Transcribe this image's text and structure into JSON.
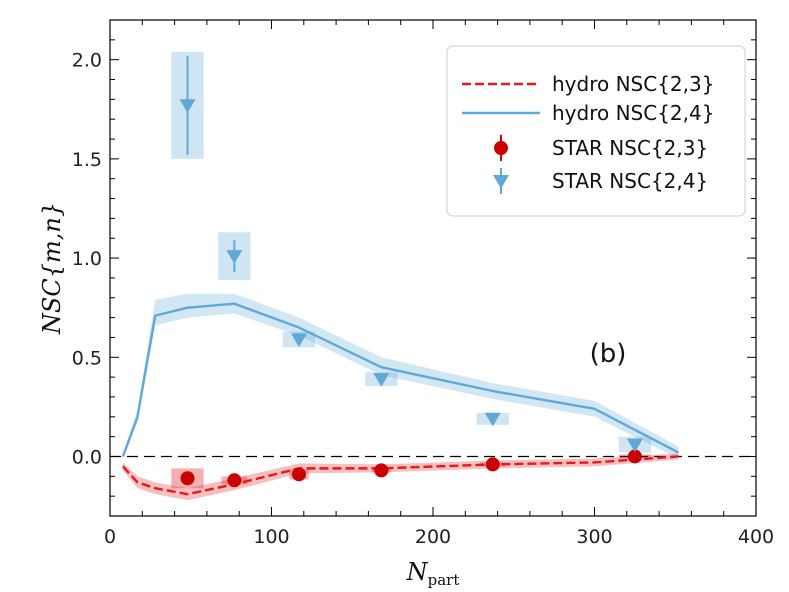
{
  "chart_data": {
    "type": "line",
    "xlabel": "N",
    "xlabel_sub": "part",
    "ylabel": "NSC{m,n}",
    "panel_label": "(b)",
    "xlim": [
      0,
      400
    ],
    "ylim": [
      -0.3,
      2.2
    ],
    "x_ticks": [
      0,
      100,
      200,
      300,
      400
    ],
    "y_ticks": [
      0.0,
      0.5,
      1.0,
      1.5,
      2.0
    ],
    "x_tick_labels": [
      "0",
      "100",
      "200",
      "300",
      "400"
    ],
    "y_tick_labels": [
      "0.0",
      "0.5",
      "1.0",
      "1.5",
      "2.0"
    ],
    "zero_line": true,
    "grid": false,
    "legend_position": "top-right",
    "colors": {
      "red": "#e41a1c",
      "red_marker": "#cc0000",
      "blue": "#5fa8d8"
    },
    "series": [
      {
        "name": "hydro NSC{2,3}",
        "kind": "line",
        "style": "dashed",
        "color_key": "red",
        "x": [
          8,
          17,
          28,
          48,
          77,
          117,
          168,
          237,
          300,
          352
        ],
        "y": [
          -0.05,
          -0.13,
          -0.16,
          -0.19,
          -0.14,
          -0.06,
          -0.06,
          -0.04,
          -0.03,
          0.0
        ],
        "band_low": [
          -0.07,
          -0.16,
          -0.19,
          -0.22,
          -0.17,
          -0.085,
          -0.08,
          -0.06,
          -0.05,
          -0.015
        ],
        "band_high": [
          -0.03,
          -0.1,
          -0.13,
          -0.16,
          -0.11,
          -0.035,
          -0.04,
          -0.02,
          -0.01,
          0.015
        ]
      },
      {
        "name": "hydro NSC{2,4}",
        "kind": "line",
        "style": "solid",
        "color_key": "blue",
        "x": [
          8,
          17,
          28,
          48,
          77,
          117,
          168,
          237,
          300,
          352
        ],
        "y": [
          0.0,
          0.2,
          0.71,
          0.75,
          0.77,
          0.65,
          0.45,
          0.33,
          0.24,
          0.02
        ],
        "band_low": [
          -0.01,
          0.17,
          0.66,
          0.7,
          0.72,
          0.61,
          0.41,
          0.29,
          0.2,
          -0.01
        ],
        "band_high": [
          0.01,
          0.23,
          0.79,
          0.82,
          0.82,
          0.7,
          0.5,
          0.37,
          0.28,
          0.05
        ]
      },
      {
        "name": "STAR NSC{2,3}",
        "kind": "points",
        "marker": "circle",
        "color_key": "red_marker",
        "x": [
          48,
          77,
          117,
          168,
          237,
          325
        ],
        "y": [
          -0.11,
          -0.12,
          -0.09,
          -0.07,
          -0.04,
          0.0
        ],
        "err": [
          0.02,
          0.02,
          0.02,
          0.02,
          0.02,
          0.02
        ],
        "sys_halfwidth_x": [
          10,
          8,
          6,
          6,
          8,
          10
        ],
        "sys_halfheight_y": [
          0.05,
          0.02,
          0.025,
          0.01,
          0.01,
          0.01
        ]
      },
      {
        "name": "STAR NSC{2,4}",
        "kind": "points",
        "marker": "triangle-down",
        "color_key": "blue",
        "x": [
          48,
          77,
          117,
          168,
          237,
          325
        ],
        "y": [
          1.77,
          1.01,
          0.59,
          0.39,
          0.19,
          0.06
        ],
        "err": [
          0.25,
          0.08,
          0.02,
          0.02,
          0.01,
          0.01
        ],
        "sys_halfwidth_x": [
          10,
          10,
          10,
          10,
          10,
          10
        ],
        "sys_halfheight_y": [
          0.27,
          0.12,
          0.04,
          0.035,
          0.03,
          0.04
        ]
      }
    ]
  }
}
